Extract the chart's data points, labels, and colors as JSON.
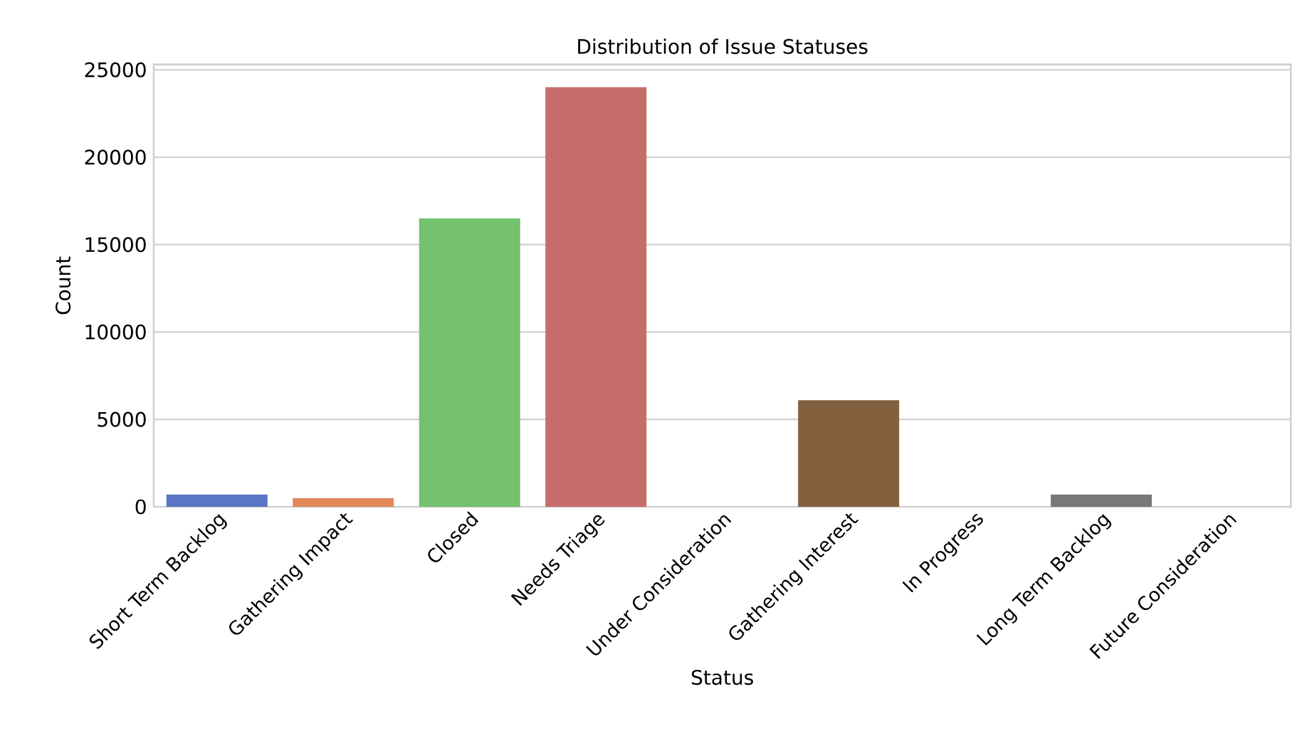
{
  "chart_data": {
    "type": "bar",
    "title": "Distribution of Issue Statuses",
    "xlabel": "Status",
    "ylabel": "Count",
    "categories": [
      "Short Term Backlog",
      "Gathering Impact",
      "Closed",
      "Needs Triage",
      "Under Consideration",
      "Gathering Interest",
      "In Progress",
      "Long Term Backlog",
      "Future Consideration"
    ],
    "values": [
      700,
      500,
      16500,
      24000,
      0,
      6100,
      0,
      700,
      0
    ],
    "colors": [
      "#5975c3",
      "#e1885a",
      "#74c16e",
      "#c66c6b",
      "#8e72b0",
      "#83613f",
      "#d783bd",
      "#787878",
      "#c9b56c"
    ],
    "ylim": [
      0,
      25300
    ],
    "yticks": [
      0,
      5000,
      10000,
      15000,
      20000,
      25000
    ],
    "grid": "y"
  }
}
